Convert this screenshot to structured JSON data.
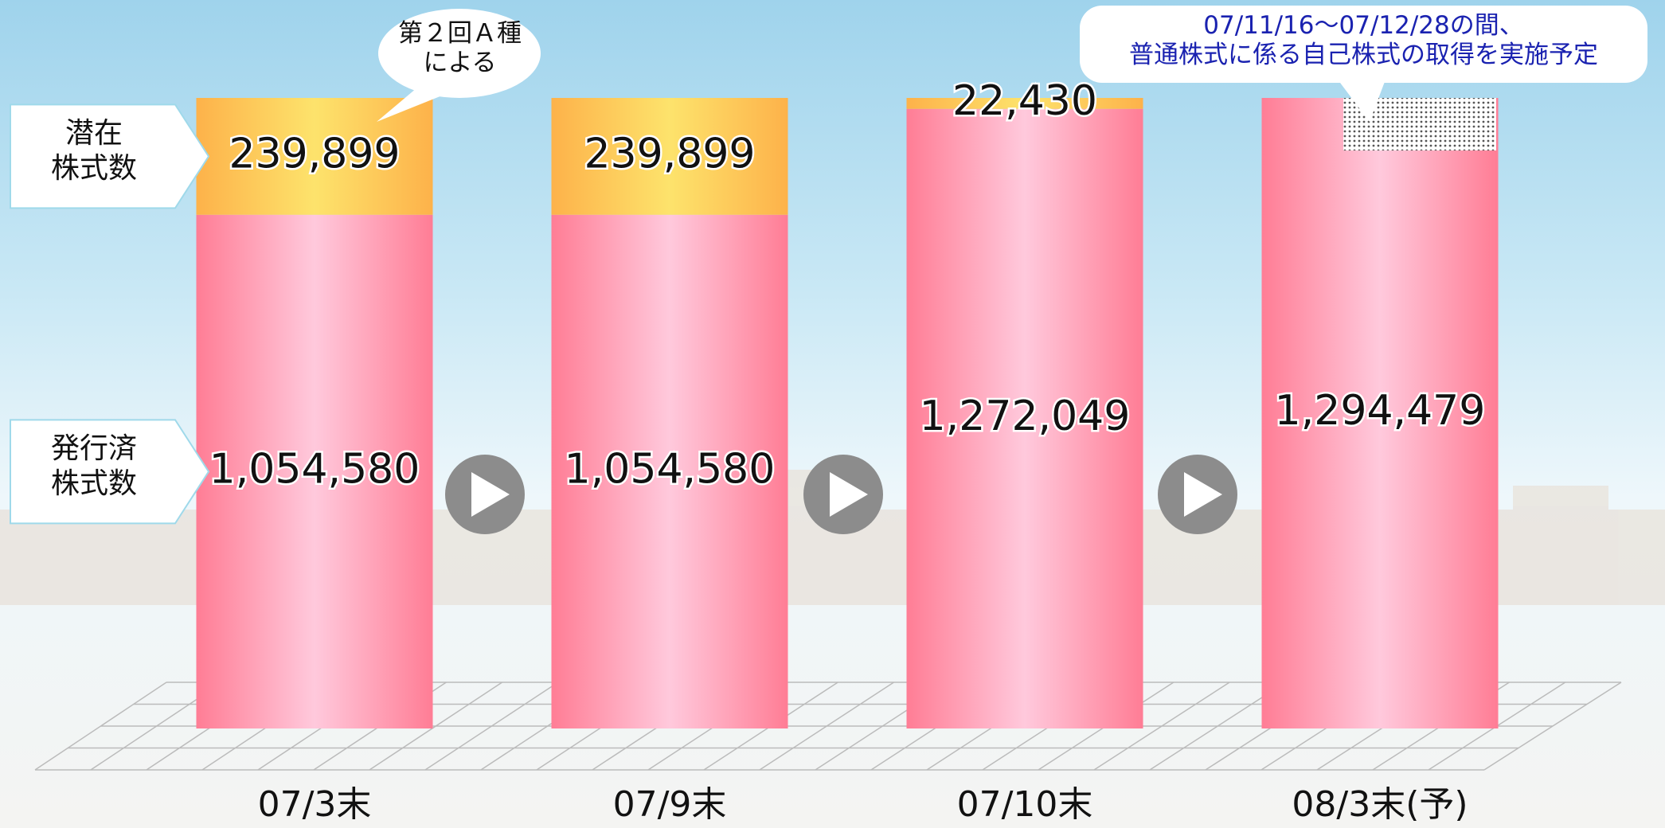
{
  "chart_data": {
    "type": "stacked-bar",
    "categories": [
      "07/3末",
      "07/9末",
      "07/10末",
      "08/3末(予)"
    ],
    "series": [
      {
        "name": "発行済\n株式数",
        "color": "#ff7d95",
        "values": [
          1054580,
          1054580,
          1272049,
          1294479
        ],
        "value_labels": [
          "1,054,580",
          "1,054,580",
          "1,272,049",
          "1,294,479"
        ]
      },
      {
        "name": "潜在\n株式数",
        "color": "#fdb24a",
        "values": [
          239899,
          239899,
          22430,
          null
        ],
        "value_labels": [
          "239,899",
          "239,899",
          "22,430",
          null
        ]
      }
    ],
    "annotations": [
      {
        "text": "第２回Ａ種\nによる"
      },
      {
        "text": "07/11/16～07/12/28の間、\n普通株式に係る自己株式の取得を実施予定"
      }
    ]
  }
}
